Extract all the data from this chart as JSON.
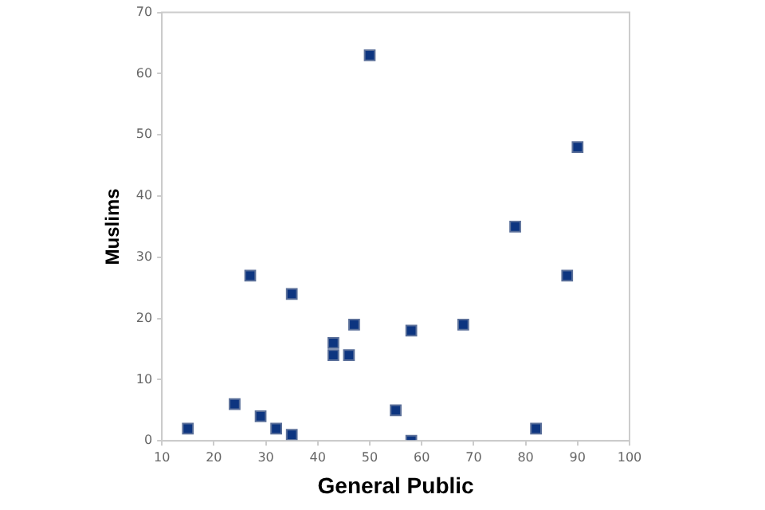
{
  "chart_data": {
    "type": "scatter",
    "xlabel": "General Public",
    "ylabel": "Muslims",
    "marker": "square",
    "grid": false,
    "legend": false,
    "xlim": [
      10,
      100
    ],
    "xticks": [
      10,
      20,
      30,
      40,
      50,
      60,
      70,
      80,
      90,
      100
    ],
    "ylim": [
      0,
      70
    ],
    "yticks": [
      0,
      10,
      20,
      30,
      40,
      50,
      60,
      70
    ],
    "series": [
      {
        "color": "#0d3580",
        "x": [
          50,
          90,
          78,
          27,
          88,
          35,
          47,
          68,
          58,
          43,
          43,
          46,
          24,
          55,
          29,
          15,
          32,
          82,
          35,
          58
        ],
        "values": [
          63,
          48,
          35,
          27,
          27,
          24,
          19,
          19,
          18,
          16,
          14,
          14,
          6,
          5,
          4,
          2,
          2,
          2,
          1,
          0
        ]
      }
    ]
  }
}
